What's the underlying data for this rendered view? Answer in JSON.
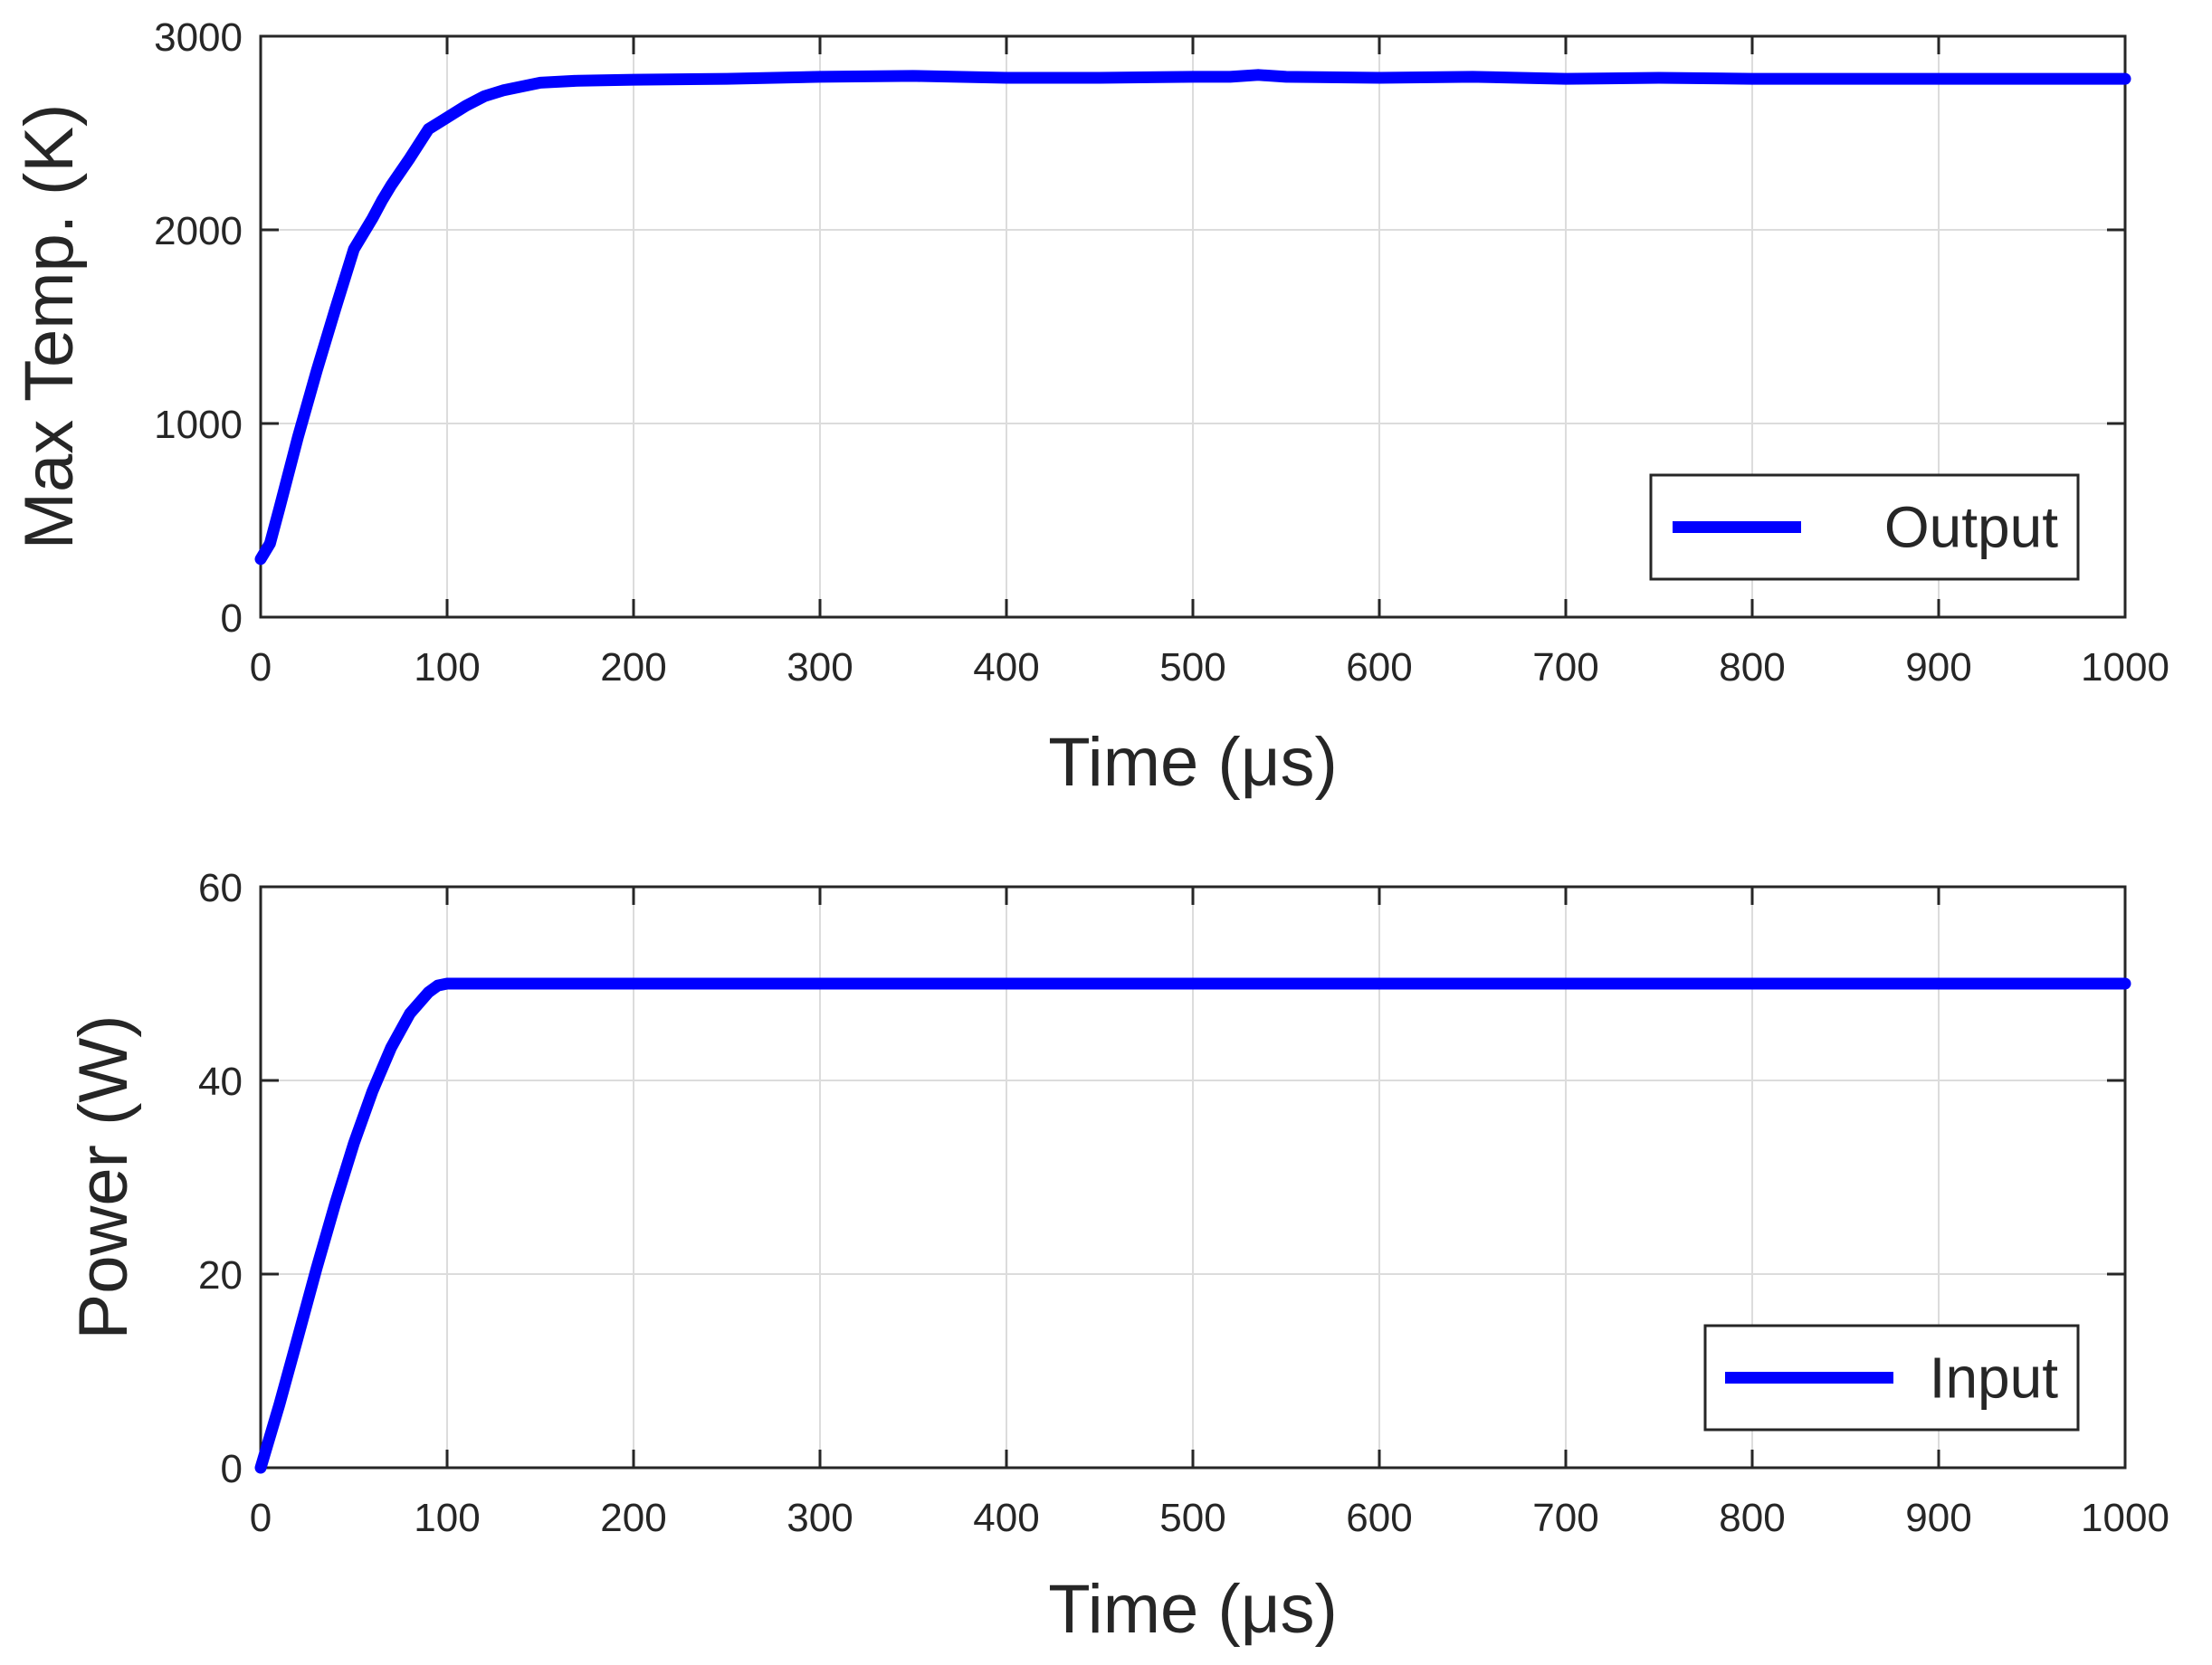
{
  "colors": {
    "series": "#0000ff",
    "axis": "#262626",
    "grid": "#dcdcdc",
    "background": "#ffffff"
  },
  "chart_data": [
    {
      "type": "line",
      "xlabel": "Time (μs)",
      "ylabel": "Max Temp. (K)",
      "xlim": [
        0,
        1000
      ],
      "ylim": [
        0,
        3000
      ],
      "xticks": [
        0,
        100,
        200,
        300,
        400,
        500,
        600,
        700,
        800,
        900,
        1000
      ],
      "yticks": [
        0,
        1000,
        2000,
        3000
      ],
      "grid": true,
      "legend": {
        "position": "bottom-right"
      },
      "series": [
        {
          "name": "Output",
          "x": [
            0,
            5,
            10,
            20,
            30,
            40,
            50,
            55,
            60,
            65,
            70,
            80,
            90,
            100,
            110,
            120,
            130,
            140,
            150,
            170,
            200,
            250,
            300,
            350,
            400,
            450,
            500,
            520,
            535,
            550,
            600,
            650,
            700,
            750,
            800,
            900,
            1000
          ],
          "y": [
            300,
            380,
            560,
            930,
            1270,
            1590,
            1900,
            1980,
            2060,
            2150,
            2230,
            2370,
            2520,
            2580,
            2640,
            2690,
            2720,
            2740,
            2760,
            2770,
            2775,
            2780,
            2790,
            2795,
            2785,
            2785,
            2790,
            2790,
            2800,
            2790,
            2785,
            2790,
            2780,
            2785,
            2780,
            2780,
            2780
          ]
        }
      ]
    },
    {
      "type": "line",
      "xlabel": "Time (μs)",
      "ylabel": "Power (W)",
      "xlim": [
        0,
        1000
      ],
      "ylim": [
        0,
        60
      ],
      "xticks": [
        0,
        100,
        200,
        300,
        400,
        500,
        600,
        700,
        800,
        900,
        1000
      ],
      "yticks": [
        0,
        20,
        40,
        60
      ],
      "grid": true,
      "legend": {
        "position": "bottom-right"
      },
      "series": [
        {
          "name": "Input",
          "x": [
            0,
            10,
            20,
            30,
            40,
            50,
            60,
            70,
            80,
            90,
            95,
            100,
            200,
            300,
            400,
            500,
            600,
            700,
            800,
            900,
            1000
          ],
          "y": [
            0,
            6.5,
            13.5,
            20.6,
            27.3,
            33.5,
            38.9,
            43.4,
            46.9,
            49.1,
            49.8,
            50,
            50,
            50,
            50,
            50,
            50,
            50,
            50,
            50,
            50
          ]
        }
      ]
    }
  ]
}
